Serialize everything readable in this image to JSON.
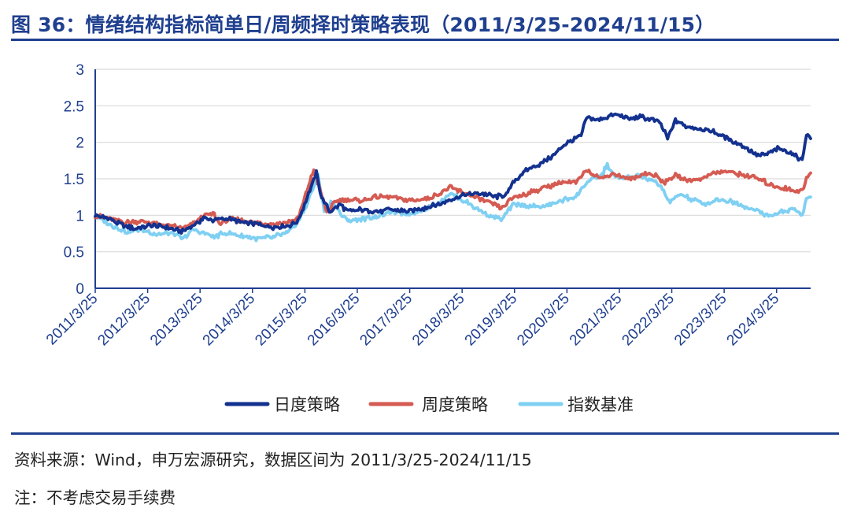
{
  "title": "图 36：情绪结构指标简单日/周频择时策略表现（2011/3/25-2024/11/15）",
  "source": "资料来源：Wind，申万宏源研究，数据区间为 2011/3/25-2024/11/15",
  "note": "注：不考虑交易手续费",
  "chart_data": {
    "type": "line",
    "title": "图 36：情绪结构指标简单日/周频择时策略表现（2011/3/25-2024/11/15）",
    "xlabel": "",
    "ylabel": "",
    "ylim": [
      0,
      3
    ],
    "yticks": [
      0,
      0.5,
      1,
      1.5,
      2,
      2.5,
      3
    ],
    "ytick_labels": [
      "0",
      "0.5",
      "1",
      "1.5",
      "2",
      "2.5",
      "3"
    ],
    "xlim": [
      2011.23,
      2024.88
    ],
    "xticks": [
      {
        "x": 2011.23,
        "label": "2011/3/25"
      },
      {
        "x": 2012.23,
        "label": "2012/3/25"
      },
      {
        "x": 2013.23,
        "label": "2013/3/25"
      },
      {
        "x": 2014.23,
        "label": "2014/3/25"
      },
      {
        "x": 2015.23,
        "label": "2015/3/25"
      },
      {
        "x": 2016.23,
        "label": "2016/3/25"
      },
      {
        "x": 2017.23,
        "label": "2017/3/25"
      },
      {
        "x": 2018.23,
        "label": "2018/3/25"
      },
      {
        "x": 2019.23,
        "label": "2019/3/25"
      },
      {
        "x": 2020.23,
        "label": "2020/3/25"
      },
      {
        "x": 2021.23,
        "label": "2021/3/25"
      },
      {
        "x": 2022.23,
        "label": "2022/3/25"
      },
      {
        "x": 2023.23,
        "label": "2023/3/25"
      },
      {
        "x": 2024.23,
        "label": "2024/3/25"
      }
    ],
    "grid": "horizontal",
    "legend_position": "bottom",
    "series": [
      {
        "name": "日度策略",
        "color": "#13318f",
        "points": [
          [
            2011.23,
            1.0
          ],
          [
            2011.5,
            0.95
          ],
          [
            2011.8,
            0.85
          ],
          [
            2012.0,
            0.82
          ],
          [
            2012.3,
            0.86
          ],
          [
            2012.6,
            0.83
          ],
          [
            2012.9,
            0.78
          ],
          [
            2013.1,
            0.86
          ],
          [
            2013.3,
            0.96
          ],
          [
            2013.5,
            0.93
          ],
          [
            2013.7,
            0.96
          ],
          [
            2014.0,
            0.91
          ],
          [
            2014.3,
            0.88
          ],
          [
            2014.6,
            0.84
          ],
          [
            2014.9,
            0.85
          ],
          [
            2015.1,
            0.92
          ],
          [
            2015.25,
            1.2
          ],
          [
            2015.45,
            1.58
          ],
          [
            2015.55,
            1.24
          ],
          [
            2015.7,
            1.05
          ],
          [
            2015.9,
            1.15
          ],
          [
            2016.05,
            1.05
          ],
          [
            2016.3,
            1.08
          ],
          [
            2016.6,
            1.05
          ],
          [
            2016.9,
            1.08
          ],
          [
            2017.2,
            1.05
          ],
          [
            2017.5,
            1.1
          ],
          [
            2017.8,
            1.15
          ],
          [
            2018.0,
            1.22
          ],
          [
            2018.3,
            1.28
          ],
          [
            2018.6,
            1.3
          ],
          [
            2018.9,
            1.25
          ],
          [
            2019.1,
            1.3
          ],
          [
            2019.2,
            1.45
          ],
          [
            2019.45,
            1.62
          ],
          [
            2019.7,
            1.7
          ],
          [
            2019.95,
            1.8
          ],
          [
            2020.2,
            1.98
          ],
          [
            2020.5,
            2.08
          ],
          [
            2020.6,
            2.34
          ],
          [
            2020.8,
            2.3
          ],
          [
            2021.0,
            2.35
          ],
          [
            2021.2,
            2.38
          ],
          [
            2021.4,
            2.32
          ],
          [
            2021.6,
            2.35
          ],
          [
            2021.8,
            2.32
          ],
          [
            2022.0,
            2.28
          ],
          [
            2022.15,
            2.05
          ],
          [
            2022.3,
            2.3
          ],
          [
            2022.5,
            2.22
          ],
          [
            2022.8,
            2.18
          ],
          [
            2023.0,
            2.15
          ],
          [
            2023.3,
            2.05
          ],
          [
            2023.6,
            1.95
          ],
          [
            2023.85,
            1.82
          ],
          [
            2024.0,
            1.82
          ],
          [
            2024.25,
            1.92
          ],
          [
            2024.5,
            1.85
          ],
          [
            2024.72,
            1.76
          ],
          [
            2024.8,
            2.12
          ],
          [
            2024.88,
            2.05
          ]
        ]
      },
      {
        "name": "周度策略",
        "color": "#d55b52",
        "points": [
          [
            2011.23,
            1.0
          ],
          [
            2011.5,
            0.95
          ],
          [
            2011.8,
            0.9
          ],
          [
            2012.1,
            0.92
          ],
          [
            2012.4,
            0.88
          ],
          [
            2012.7,
            0.85
          ],
          [
            2012.9,
            0.82
          ],
          [
            2013.1,
            0.88
          ],
          [
            2013.3,
            1.0
          ],
          [
            2013.5,
            1.02
          ],
          [
            2013.6,
            0.88
          ],
          [
            2013.8,
            0.95
          ],
          [
            2014.0,
            0.93
          ],
          [
            2014.3,
            0.9
          ],
          [
            2014.6,
            0.88
          ],
          [
            2014.9,
            0.9
          ],
          [
            2015.1,
            0.95
          ],
          [
            2015.25,
            1.3
          ],
          [
            2015.4,
            1.62
          ],
          [
            2015.52,
            1.35
          ],
          [
            2015.65,
            1.05
          ],
          [
            2015.85,
            1.2
          ],
          [
            2016.05,
            1.22
          ],
          [
            2016.3,
            1.2
          ],
          [
            2016.6,
            1.25
          ],
          [
            2016.9,
            1.25
          ],
          [
            2017.2,
            1.2
          ],
          [
            2017.5,
            1.22
          ],
          [
            2017.8,
            1.3
          ],
          [
            2018.0,
            1.38
          ],
          [
            2018.2,
            1.32
          ],
          [
            2018.5,
            1.25
          ],
          [
            2018.8,
            1.15
          ],
          [
            2019.0,
            1.1
          ],
          [
            2019.2,
            1.25
          ],
          [
            2019.5,
            1.3
          ],
          [
            2019.8,
            1.38
          ],
          [
            2020.1,
            1.45
          ],
          [
            2020.4,
            1.45
          ],
          [
            2020.6,
            1.62
          ],
          [
            2020.9,
            1.5
          ],
          [
            2021.1,
            1.58
          ],
          [
            2021.3,
            1.52
          ],
          [
            2021.5,
            1.5
          ],
          [
            2021.7,
            1.58
          ],
          [
            2021.9,
            1.55
          ],
          [
            2022.1,
            1.45
          ],
          [
            2022.3,
            1.55
          ],
          [
            2022.5,
            1.48
          ],
          [
            2022.8,
            1.5
          ],
          [
            2023.0,
            1.58
          ],
          [
            2023.3,
            1.6
          ],
          [
            2023.6,
            1.55
          ],
          [
            2023.9,
            1.5
          ],
          [
            2024.1,
            1.42
          ],
          [
            2024.3,
            1.38
          ],
          [
            2024.5,
            1.35
          ],
          [
            2024.72,
            1.33
          ],
          [
            2024.8,
            1.5
          ],
          [
            2024.88,
            1.58
          ]
        ]
      },
      {
        "name": "指数基准",
        "color": "#7fd0f2",
        "points": [
          [
            2011.23,
            1.0
          ],
          [
            2011.5,
            0.88
          ],
          [
            2011.8,
            0.78
          ],
          [
            2012.1,
            0.8
          ],
          [
            2012.4,
            0.74
          ],
          [
            2012.7,
            0.75
          ],
          [
            2012.9,
            0.68
          ],
          [
            2013.1,
            0.8
          ],
          [
            2013.3,
            0.76
          ],
          [
            2013.5,
            0.7
          ],
          [
            2013.7,
            0.76
          ],
          [
            2014.0,
            0.72
          ],
          [
            2014.3,
            0.68
          ],
          [
            2014.6,
            0.7
          ],
          [
            2014.9,
            0.76
          ],
          [
            2015.1,
            0.9
          ],
          [
            2015.3,
            1.2
          ],
          [
            2015.48,
            1.55
          ],
          [
            2015.6,
            1.05
          ],
          [
            2015.75,
            1.2
          ],
          [
            2015.95,
            0.98
          ],
          [
            2016.1,
            0.92
          ],
          [
            2016.4,
            0.96
          ],
          [
            2016.7,
            1.0
          ],
          [
            2016.9,
            1.05
          ],
          [
            2017.2,
            1.02
          ],
          [
            2017.5,
            1.08
          ],
          [
            2017.8,
            1.18
          ],
          [
            2018.0,
            1.3
          ],
          [
            2018.2,
            1.22
          ],
          [
            2018.5,
            1.1
          ],
          [
            2018.8,
            0.98
          ],
          [
            2019.0,
            0.95
          ],
          [
            2019.2,
            1.15
          ],
          [
            2019.5,
            1.12
          ],
          [
            2019.8,
            1.12
          ],
          [
            2020.1,
            1.2
          ],
          [
            2020.4,
            1.25
          ],
          [
            2020.6,
            1.45
          ],
          [
            2020.9,
            1.55
          ],
          [
            2021.0,
            1.7
          ],
          [
            2021.1,
            1.55
          ],
          [
            2021.3,
            1.5
          ],
          [
            2021.6,
            1.55
          ],
          [
            2021.8,
            1.48
          ],
          [
            2022.0,
            1.42
          ],
          [
            2022.2,
            1.18
          ],
          [
            2022.4,
            1.3
          ],
          [
            2022.6,
            1.22
          ],
          [
            2022.9,
            1.15
          ],
          [
            2023.1,
            1.22
          ],
          [
            2023.4,
            1.18
          ],
          [
            2023.7,
            1.1
          ],
          [
            2023.9,
            1.05
          ],
          [
            2024.1,
            0.98
          ],
          [
            2024.3,
            1.05
          ],
          [
            2024.55,
            1.08
          ],
          [
            2024.72,
            1.0
          ],
          [
            2024.8,
            1.22
          ],
          [
            2024.88,
            1.25
          ]
        ]
      }
    ]
  }
}
